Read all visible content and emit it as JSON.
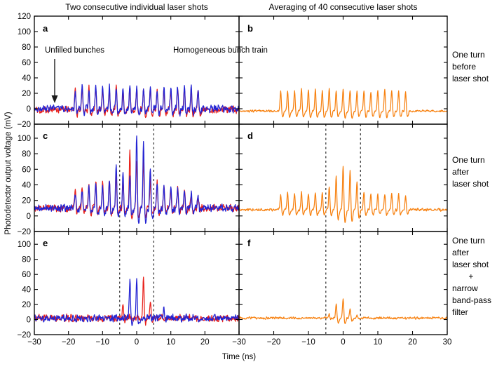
{
  "figure": {
    "column_titles": [
      "Two consecutive individual laser shots",
      "Averaging of 40 consecutive laser shots"
    ],
    "ylabel": "Photodetector output voltage (mV)",
    "xlabel": "Time (ns)",
    "row_side_labels": [
      "One turn\nbefore\nlaser shot",
      "One turn\nafter\nlaser shot",
      "One turn\nafter\nlaser shot\n       +\nnarrow\nband-pass\nfilter"
    ],
    "annotations": {
      "unfilled_bunches": "Unfilled bunches",
      "homogeneous_bunch_train": "Homogeneous bunch train"
    }
  },
  "colors": {
    "shot1_red": "#e8201a",
    "shot2_blue": "#2323d3",
    "averaged_orange": "#f78212",
    "axis": "#000000",
    "dashed_marker": "#3f3f3f",
    "text": "#000000"
  },
  "chart_data": {
    "type": "line",
    "title_left": "Two consecutive individual laser shots",
    "title_right": "Averaging of 40 consecutive laser shots",
    "xlabel": "Time (ns)",
    "ylabel": "Photodetector output voltage (mV)",
    "x_range_ns": [
      -30,
      30
    ],
    "xticks": [
      -30,
      -20,
      -10,
      0,
      10,
      20,
      30
    ],
    "bunch_spacing_ns": 2,
    "bunch_positions_ns": [
      -18,
      -16,
      -14,
      -12,
      -10,
      -8,
      -6,
      -4,
      -2,
      0,
      2,
      4,
      6,
      8,
      10,
      12,
      14,
      16,
      18
    ],
    "dashed_window_ns": [
      -5,
      5
    ],
    "panels": [
      {
        "panel_label": "a",
        "row": 0,
        "col": 0,
        "ylim": [
          -20,
          120
        ],
        "yticks": [
          -20,
          0,
          20,
          40,
          60,
          80,
          100,
          120
        ],
        "ytick_labels": true,
        "xtick_labels": null,
        "dashed_x": [],
        "series": [
          {
            "name": "laser shot 1",
            "color": "shot1_red",
            "baseline": -1,
            "noise": 4,
            "undershoot": 0.22,
            "seed": 101,
            "spike_x": "bunches",
            "spike_peak": [
              27,
              24,
              29,
              25,
              28,
              26,
              29,
              24,
              30,
              26,
              28,
              25,
              29,
              26,
              24,
              27,
              26,
              29,
              23
            ]
          },
          {
            "name": "laser shot 2",
            "color": "shot2_blue",
            "baseline": 0,
            "noise": 4,
            "undershoot": 0.22,
            "seed": 202,
            "spike_x": "bunches",
            "spike_peak": [
              26,
              29,
              25,
              30,
              27,
              29,
              26,
              31,
              28,
              30,
              27,
              30,
              26,
              29,
              28,
              31,
              26,
              28,
              25
            ]
          }
        ]
      },
      {
        "panel_label": "b",
        "row": 0,
        "col": 1,
        "ylim": [
          -20,
          120
        ],
        "yticks": [
          -20,
          0,
          20,
          40,
          60,
          80,
          100,
          120
        ],
        "ytick_labels": false,
        "xtick_labels": null,
        "dashed_x": [],
        "series": [
          {
            "name": "average of 40 shots",
            "color": "averaged_orange",
            "baseline": -3,
            "noise": 1.2,
            "undershoot": 0.3,
            "seed": 303,
            "spike_x": "bunches",
            "spike_peak": [
              23,
              25,
              24,
              26,
              24,
              25,
              24,
              26,
              25,
              27,
              25,
              24,
              25,
              23,
              24,
              25,
              23,
              24,
              22
            ]
          }
        ]
      },
      {
        "panel_label": "c",
        "row": 1,
        "col": 0,
        "ylim": [
          -20,
          118
        ],
        "yticks": [
          -20,
          0,
          20,
          40,
          60,
          80,
          100
        ],
        "ytick_labels": true,
        "xtick_labels": null,
        "dashed_x": [
          -5,
          5
        ],
        "series": [
          {
            "name": "laser shot 1",
            "color": "shot1_red",
            "baseline": 10,
            "noise": 4,
            "undershoot": 0.22,
            "seed": 404,
            "spike_x": "bunches",
            "spike_peak": [
              33,
              38,
              42,
              45,
              44,
              46,
              55,
              45,
              87,
              70,
              75,
              50,
              45,
              41,
              38,
              34,
              35,
              30,
              28
            ]
          },
          {
            "name": "laser shot 2",
            "color": "shot2_blue",
            "baseline": 10,
            "noise": 4,
            "undershoot": 0.22,
            "seed": 505,
            "spike_x": "bunches",
            "spike_peak": [
              28,
              34,
              38,
              41,
              43,
              44,
              65,
              56,
              55,
              105,
              99,
              61,
              42,
              40,
              37,
              38,
              33,
              29,
              27
            ]
          }
        ]
      },
      {
        "panel_label": "d",
        "row": 1,
        "col": 1,
        "ylim": [
          -20,
          118
        ],
        "yticks": [
          -20,
          0,
          20,
          40,
          60,
          80,
          100
        ],
        "ytick_labels": false,
        "xtick_labels": null,
        "dashed_x": [
          -5,
          5
        ],
        "series": [
          {
            "name": "average of 40 shots",
            "color": "averaged_orange",
            "baseline": 8,
            "noise": 1.5,
            "undershoot": 0.3,
            "seed": 606,
            "spike_x": "bunches",
            "spike_peak": [
              29,
              30,
              30,
              31,
              30,
              31,
              32,
              38,
              52,
              65,
              60,
              45,
              32,
              30,
              29,
              30,
              29,
              28,
              27
            ]
          }
        ]
      },
      {
        "panel_label": "e",
        "row": 2,
        "col": 0,
        "ylim": [
          -20,
          117
        ],
        "yticks": [
          -20,
          0,
          20,
          40,
          60,
          80,
          100
        ],
        "ytick_labels": true,
        "xtick_labels": [
          -30,
          -20,
          -10,
          0,
          10,
          20
        ],
        "dashed_x": [
          -5,
          5
        ],
        "series": [
          {
            "name": "laser shot 1",
            "color": "shot1_red",
            "baseline": 2,
            "noise": 4,
            "undershoot": 0.15,
            "seed": 707,
            "spike_x": [
              -4,
              2,
              4
            ],
            "spike_peak": [
              18,
              57,
              25
            ]
          },
          {
            "name": "laser shot 2",
            "color": "shot2_blue",
            "baseline": 2,
            "noise": 4,
            "undershoot": 0.15,
            "seed": 808,
            "spike_x": [
              -2,
              0,
              8
            ],
            "spike_peak": [
              55,
              59,
              13
            ]
          }
        ]
      },
      {
        "panel_label": "f",
        "row": 2,
        "col": 1,
        "ylim": [
          -20,
          117
        ],
        "yticks": [
          -20,
          0,
          20,
          40,
          60,
          80,
          100
        ],
        "ytick_labels": false,
        "xtick_labels": [
          -30,
          -20,
          -10,
          0,
          10,
          20,
          30
        ],
        "dashed_x": [
          -5,
          5
        ],
        "series": [
          {
            "name": "average of 40 shots",
            "color": "averaged_orange",
            "baseline": 2,
            "noise": 1.3,
            "undershoot": 0.3,
            "seed": 909,
            "spike_x": [
              -4,
              -2,
              0,
              2,
              4
            ],
            "spike_peak": [
              7,
              22,
              28,
              15,
              6
            ]
          }
        ]
      }
    ]
  }
}
